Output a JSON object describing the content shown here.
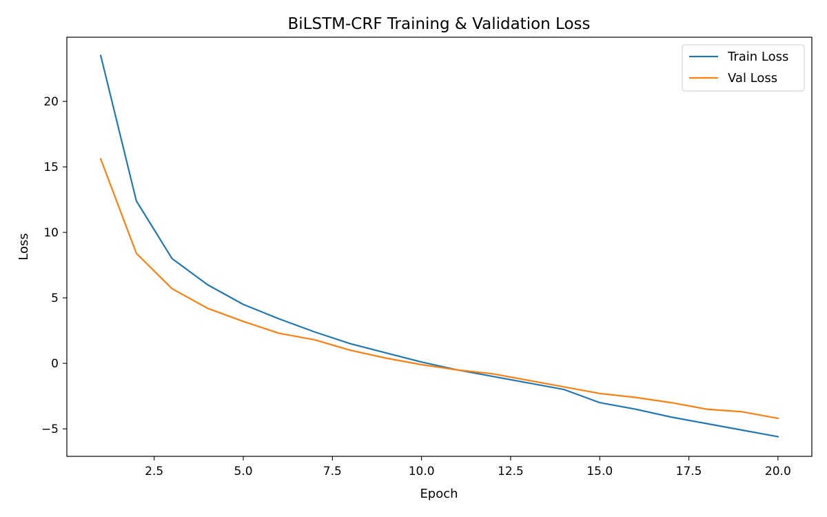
{
  "chart_data": {
    "type": "line",
    "title": "BiLSTM-CRF Training & Validation Loss",
    "xlabel": "Epoch",
    "ylabel": "Loss",
    "xlim": [
      0.05,
      20.95
    ],
    "ylim": [
      -7.1,
      24.9
    ],
    "xticks": [
      2.5,
      5.0,
      7.5,
      10.0,
      12.5,
      15.0,
      17.5,
      20.0
    ],
    "yticks": [
      -5,
      0,
      5,
      10,
      15,
      20
    ],
    "grid": false,
    "legend_position": "top-right",
    "x": [
      1,
      2,
      3,
      4,
      5,
      6,
      7,
      8,
      9,
      10,
      11,
      12,
      13,
      14,
      15,
      16,
      17,
      18,
      19,
      20
    ],
    "series": [
      {
        "name": "Train Loss",
        "color": "#1f77b4",
        "values": [
          23.5,
          12.4,
          8.0,
          6.0,
          4.5,
          3.4,
          2.4,
          1.5,
          0.8,
          0.1,
          -0.5,
          -1.0,
          -1.5,
          -2.0,
          -3.0,
          -3.5,
          -4.1,
          -4.6,
          -5.1,
          -5.6
        ]
      },
      {
        "name": "Val Loss",
        "color": "#ff7f0e",
        "values": [
          15.6,
          8.4,
          5.7,
          4.2,
          3.2,
          2.3,
          1.8,
          1.0,
          0.4,
          -0.1,
          -0.5,
          -0.8,
          -1.3,
          -1.8,
          -2.3,
          -2.6,
          -3.0,
          -3.5,
          -3.7,
          -4.2
        ]
      }
    ]
  }
}
